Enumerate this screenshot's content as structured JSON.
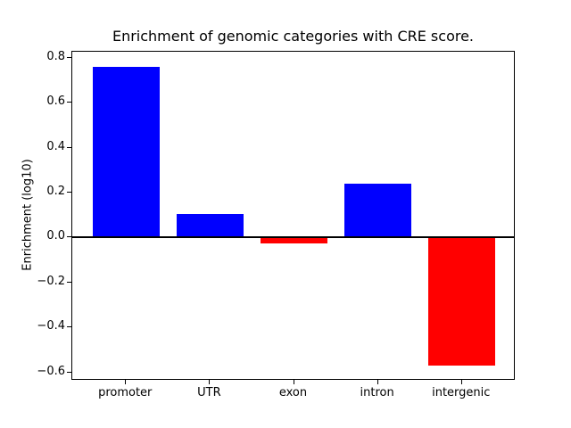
{
  "figure": {
    "background": "#ffffff"
  },
  "chart_data": {
    "type": "bar",
    "title": "Enrichment of genomic categories with CRE score.",
    "xlabel": "",
    "ylabel": "Enrichment (log10)",
    "categories": [
      "promoter",
      "UTR",
      "exon",
      "intron",
      "intergenic"
    ],
    "values": [
      0.76,
      0.105,
      -0.025,
      0.24,
      -0.57
    ],
    "bar_colors": [
      "#0000ff",
      "#0000ff",
      "#ff0000",
      "#0000ff",
      "#ff0000"
    ],
    "positive_color": "#0000ff",
    "negative_color": "#ff0000",
    "bar_width": 0.8,
    "xlim": [
      -0.64,
      4.64
    ],
    "ylim": [
      -0.6365,
      0.8265
    ],
    "yticks": [
      -0.6,
      -0.4,
      -0.2,
      0.0,
      0.2,
      0.4,
      0.6,
      0.8
    ],
    "ytick_labels": [
      "−0.6",
      "−0.4",
      "−0.2",
      "0.0",
      "0.2",
      "0.4",
      "0.6",
      "0.8"
    ],
    "zero_line": true,
    "grid": false,
    "legend": null
  }
}
